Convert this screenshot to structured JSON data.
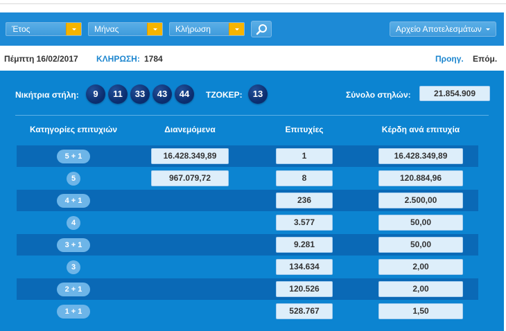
{
  "filters": {
    "year_label": "Έτος",
    "month_label": "Μήνας",
    "draw_label": "Κλήρωση",
    "archive_label": "Αρχείο Αποτελεσμάτων"
  },
  "info": {
    "date": "Πέμπτη 16/02/2017",
    "draw_label": "ΚΛΗΡΩΣΗ:",
    "draw_number": "1784",
    "prev_label": "Προηγ.",
    "next_label": "Επόμ."
  },
  "winning": {
    "label": "Νικήτρια στήλη:",
    "numbers": [
      "9",
      "11",
      "33",
      "43",
      "44"
    ],
    "joker_label": "ΤΖΟΚΕΡ:",
    "joker": "13",
    "total_label": "Σύνολο στηλών:",
    "total": "21.854.909"
  },
  "table": {
    "headers": [
      "Κατηγορίες επιτυχιών",
      "Διανεμόμενα",
      "Επιτυχίες",
      "Κέρδη ανά επιτυχία"
    ],
    "rows": [
      {
        "category": "5 + 1",
        "distributed": "16.428.349,89",
        "winners": "1",
        "prize": "16.428.349,89"
      },
      {
        "category": "5",
        "distributed": "967.079,72",
        "winners": "8",
        "prize": "120.884,96"
      },
      {
        "category": "4 + 1",
        "distributed": "",
        "winners": "236",
        "prize": "2.500,00"
      },
      {
        "category": "4",
        "distributed": "",
        "winners": "3.577",
        "prize": "50,00"
      },
      {
        "category": "3 + 1",
        "distributed": "",
        "winners": "9.281",
        "prize": "50,00"
      },
      {
        "category": "3",
        "distributed": "",
        "winners": "134.634",
        "prize": "2,00"
      },
      {
        "category": "2 + 1",
        "distributed": "",
        "winners": "120.526",
        "prize": "2,00"
      },
      {
        "category": "1 + 1",
        "distributed": "",
        "winners": "528.767",
        "prize": "1,50"
      }
    ]
  },
  "colors": {
    "panel": "#0c84d1",
    "toolbar": "#1d8ad6",
    "dropdown_arrow": "#f5b400",
    "ball": "#0b2d6e",
    "cell": "#ddeefa"
  }
}
